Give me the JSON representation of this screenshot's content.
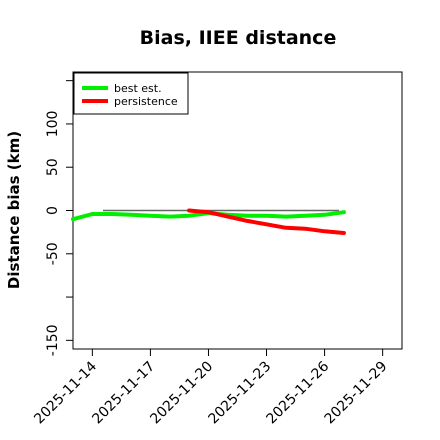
{
  "chart_data": {
    "type": "line",
    "title": "Bias, IIEE distance",
    "xlabel": "",
    "ylabel": "Distance bias (km)",
    "x_ticks": [
      "2025-11-14",
      "2025-11-17",
      "2025-11-20",
      "2025-11-23",
      "2025-11-26",
      "2025-11-29"
    ],
    "y_ticks": [
      "-150",
      "-50",
      "0",
      "50",
      "100"
    ],
    "xlim": [
      "2025-11-13",
      "2025-11-30"
    ],
    "ylim": [
      -160,
      160
    ],
    "reference_line": 0,
    "legend": {
      "placement": "top-left",
      "entries": [
        "best est.",
        "persistence"
      ]
    },
    "series": [
      {
        "name": "best est.",
        "color": "#00ee00",
        "points": [
          [
            "2025-11-13",
            -10
          ],
          [
            "2025-11-14",
            -4
          ],
          [
            "2025-11-15",
            -4
          ],
          [
            "2025-11-16",
            -5
          ],
          [
            "2025-11-17",
            -6
          ],
          [
            "2025-11-18",
            -7
          ],
          [
            "2025-11-19",
            -6
          ],
          [
            "2025-11-20",
            -3
          ],
          [
            "2025-11-21",
            -5
          ],
          [
            "2025-11-22",
            -6
          ],
          [
            "2025-11-23",
            -6
          ],
          [
            "2025-11-24",
            -7
          ],
          [
            "2025-11-25",
            -6
          ],
          [
            "2025-11-26",
            -5
          ],
          [
            "2025-11-27",
            -2
          ]
        ]
      },
      {
        "name": "persistence",
        "color": "#ff0000",
        "points": [
          [
            "2025-11-19",
            0
          ],
          [
            "2025-11-20",
            -2
          ],
          [
            "2025-11-21",
            -7
          ],
          [
            "2025-11-22",
            -12
          ],
          [
            "2025-11-23",
            -16
          ],
          [
            "2025-11-24",
            -20
          ],
          [
            "2025-11-25",
            -21
          ],
          [
            "2025-11-26",
            -24
          ],
          [
            "2025-11-27",
            -26
          ]
        ]
      }
    ]
  }
}
